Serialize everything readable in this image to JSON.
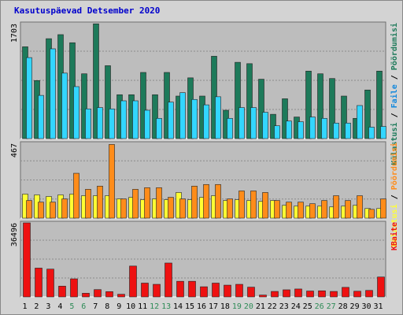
{
  "chart_data": {
    "type": "bar",
    "title": "Kasutuspäevad Detsember 2020",
    "categories": [
      "1",
      "2",
      "3",
      "4",
      "5",
      "6",
      "7",
      "8",
      "9",
      "10",
      "11",
      "12",
      "13",
      "14",
      "15",
      "16",
      "17",
      "18",
      "19",
      "20",
      "21",
      "22",
      "23",
      "24",
      "25",
      "26",
      "27",
      "28",
      "29",
      "30",
      "31"
    ],
    "weekend_days": [
      "5",
      "6",
      "12",
      "13",
      "19",
      "20",
      "26",
      "27"
    ],
    "colors": {
      "kylastusi": "#1d7a5a",
      "faile": "#33d6ff",
      "lehekulgi": "#ffff33",
      "poordumisi": "#ff8c1a",
      "kbaite": "#ee1111",
      "weekday_label": "#000000",
      "weekend_label": "#2e8b57",
      "panel_bg": "#bdbdbd",
      "frame_bg": "#d3d3d3",
      "title": "#0000cc"
    },
    "panels": [
      {
        "max_label": "1703",
        "ymax": 1703,
        "legend": [
          {
            "text": "Külastusi",
            "color": "#1d7a5a"
          },
          {
            "text": " / ",
            "color": "#000000"
          },
          {
            "text": "Faile",
            "color": "#1188dd"
          },
          {
            "text": " / ",
            "color": "#000000"
          },
          {
            "text": "Pöördumisi",
            "color": "#1d7a5a"
          }
        ],
        "series": [
          {
            "key": "kylastusi",
            "values": [
              1360,
              860,
              1480,
              1540,
              1420,
              960,
              1700,
              1080,
              650,
              650,
              980,
              650,
              980,
              630,
              900,
              630,
              1220,
              420,
              1130,
              1110,
              880,
              360,
              590,
              320,
              1000,
              960,
              890,
              630,
              300,
              720,
              1000
            ]
          },
          {
            "key": "faile",
            "values": [
              1200,
              640,
              1330,
              970,
              770,
              440,
              460,
              440,
              560,
              560,
              420,
              300,
              540,
              680,
              580,
              500,
              620,
              300,
              460,
              460,
              390,
              190,
              260,
              250,
              320,
              300,
              230,
              230,
              490,
              170,
              180
            ]
          }
        ]
      },
      {
        "max_label": "467",
        "ymax": 467,
        "legend": [
          {
            "text": "Külastusi",
            "color": "#ffff33"
          },
          {
            "text": " / ",
            "color": "#000000"
          },
          {
            "text": "Pöördumisi",
            "color": "#ff8c1a"
          }
        ],
        "series": [
          {
            "key": "lehekulgi",
            "values": [
              150,
              145,
              135,
              145,
              150,
              140,
              140,
              140,
              120,
              130,
              115,
              120,
              115,
              160,
              115,
              130,
              140,
              110,
              115,
              110,
              105,
              110,
              80,
              75,
              75,
              75,
              70,
              75,
              80,
              60,
              60
            ]
          },
          {
            "key": "poordumisi",
            "values": [
              110,
              100,
              100,
              120,
              280,
              180,
              200,
              460,
              120,
              180,
              190,
              190,
              130,
              120,
              200,
              210,
              210,
              120,
              170,
              170,
              160,
              110,
              100,
              100,
              90,
              110,
              140,
              110,
              140,
              55,
              120
            ]
          }
        ]
      },
      {
        "max_label": "36496",
        "ymax": 36496,
        "legend": [
          {
            "text": "KBaite",
            "color": "#ee1111"
          }
        ],
        "series": [
          {
            "key": "kbaite",
            "values": [
              36496,
              14200,
              13700,
              5300,
              8900,
              1800,
              3600,
              2600,
              1300,
              15200,
              6800,
              6200,
              16700,
              7700,
              7700,
              5000,
              6800,
              5800,
              6200,
              4800,
              900,
              2700,
              3500,
              3900,
              2900,
              3000,
              2700,
              4700,
              2800,
              3200,
              9800
            ]
          }
        ]
      }
    ]
  }
}
